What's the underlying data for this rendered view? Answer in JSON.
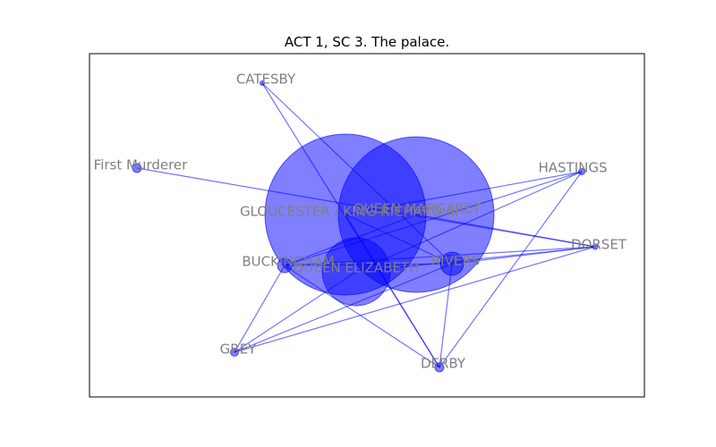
{
  "title": "ACT 1, SC 3. The palace.",
  "colors": {
    "node": "#0000ff",
    "edge": "#0000ff",
    "label": "#808080",
    "frame": "#000000"
  },
  "nodes": [
    {
      "id": "gloucester",
      "label": "GLOUCESTER / KING RICHARD III"
    },
    {
      "id": "queen_margaret",
      "label": "QUEEN MARGARET"
    },
    {
      "id": "queen_elizabeth",
      "label": "QUEEN ELIZABETH"
    },
    {
      "id": "buckingham",
      "label": "BUCKINGHAM"
    },
    {
      "id": "rivers",
      "label": "RIVERS"
    },
    {
      "id": "catesby",
      "label": "CATESBY"
    },
    {
      "id": "first_murderer",
      "label": "First Murderer"
    },
    {
      "id": "hastings",
      "label": "HASTINGS"
    },
    {
      "id": "dorset",
      "label": "DORSET"
    },
    {
      "id": "grey",
      "label": "GREY"
    },
    {
      "id": "derby",
      "label": "DERBY"
    }
  ],
  "edges": [
    [
      "catesby",
      "rivers"
    ],
    [
      "catesby",
      "derby"
    ],
    [
      "first_murderer",
      "dorset"
    ],
    [
      "hastings",
      "buckingham"
    ],
    [
      "hastings",
      "queen_elizabeth"
    ],
    [
      "hastings",
      "gloucester"
    ],
    [
      "hastings",
      "derby"
    ],
    [
      "dorset",
      "buckingham"
    ],
    [
      "dorset",
      "rivers"
    ],
    [
      "dorset",
      "queen_elizabeth"
    ],
    [
      "dorset",
      "queen_margaret"
    ],
    [
      "dorset",
      "grey"
    ],
    [
      "buckingham",
      "rivers"
    ],
    [
      "buckingham",
      "queen_margaret"
    ],
    [
      "buckingham",
      "grey"
    ],
    [
      "buckingham",
      "derby"
    ],
    [
      "grey",
      "rivers"
    ],
    [
      "grey",
      "queen_elizabeth"
    ],
    [
      "derby",
      "rivers"
    ],
    [
      "derby",
      "gloucester"
    ],
    [
      "rivers",
      "gloucester"
    ]
  ]
}
